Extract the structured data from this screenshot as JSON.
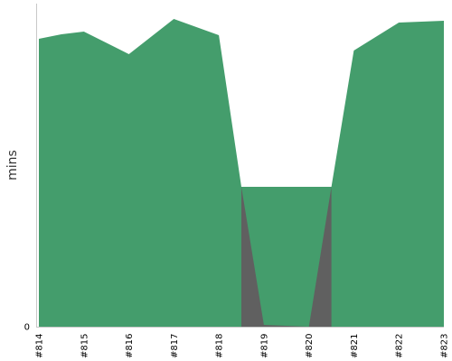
{
  "chart_data": {
    "type": "area",
    "title": "",
    "xlabel": "",
    "ylabel": "mins",
    "categories": [
      "#814",
      "#815",
      "#816",
      "#817",
      "#818",
      "#819",
      "#820",
      "#821",
      "#822",
      "#823"
    ],
    "series": [
      {
        "color": "#449d6c",
        "points": [
          {
            "x": 0,
            "y": 319
          },
          {
            "x": 0.5,
            "y": 324
          },
          {
            "x": 1,
            "y": 327
          },
          {
            "x": 2,
            "y": 302
          },
          {
            "x": 3,
            "y": 341
          },
          {
            "x": 4,
            "y": 323
          },
          {
            "x": 4.5,
            "y": 155
          },
          {
            "x": 6.5,
            "y": 155
          },
          {
            "x": 7,
            "y": 306
          },
          {
            "x": 8,
            "y": 337
          },
          {
            "x": 9,
            "y": 339
          }
        ]
      },
      {
        "color": "#606060",
        "points": [
          {
            "x": 4.5,
            "y": 155
          },
          {
            "x": 5,
            "y": 2
          },
          {
            "x": 6,
            "y": 0
          },
          {
            "x": 6.5,
            "y": 155
          }
        ]
      }
    ],
    "yticks": [
      0
    ],
    "ylim": [
      0,
      358
    ],
    "xlim": [
      0,
      9
    ],
    "grid": false,
    "legend": "none"
  }
}
